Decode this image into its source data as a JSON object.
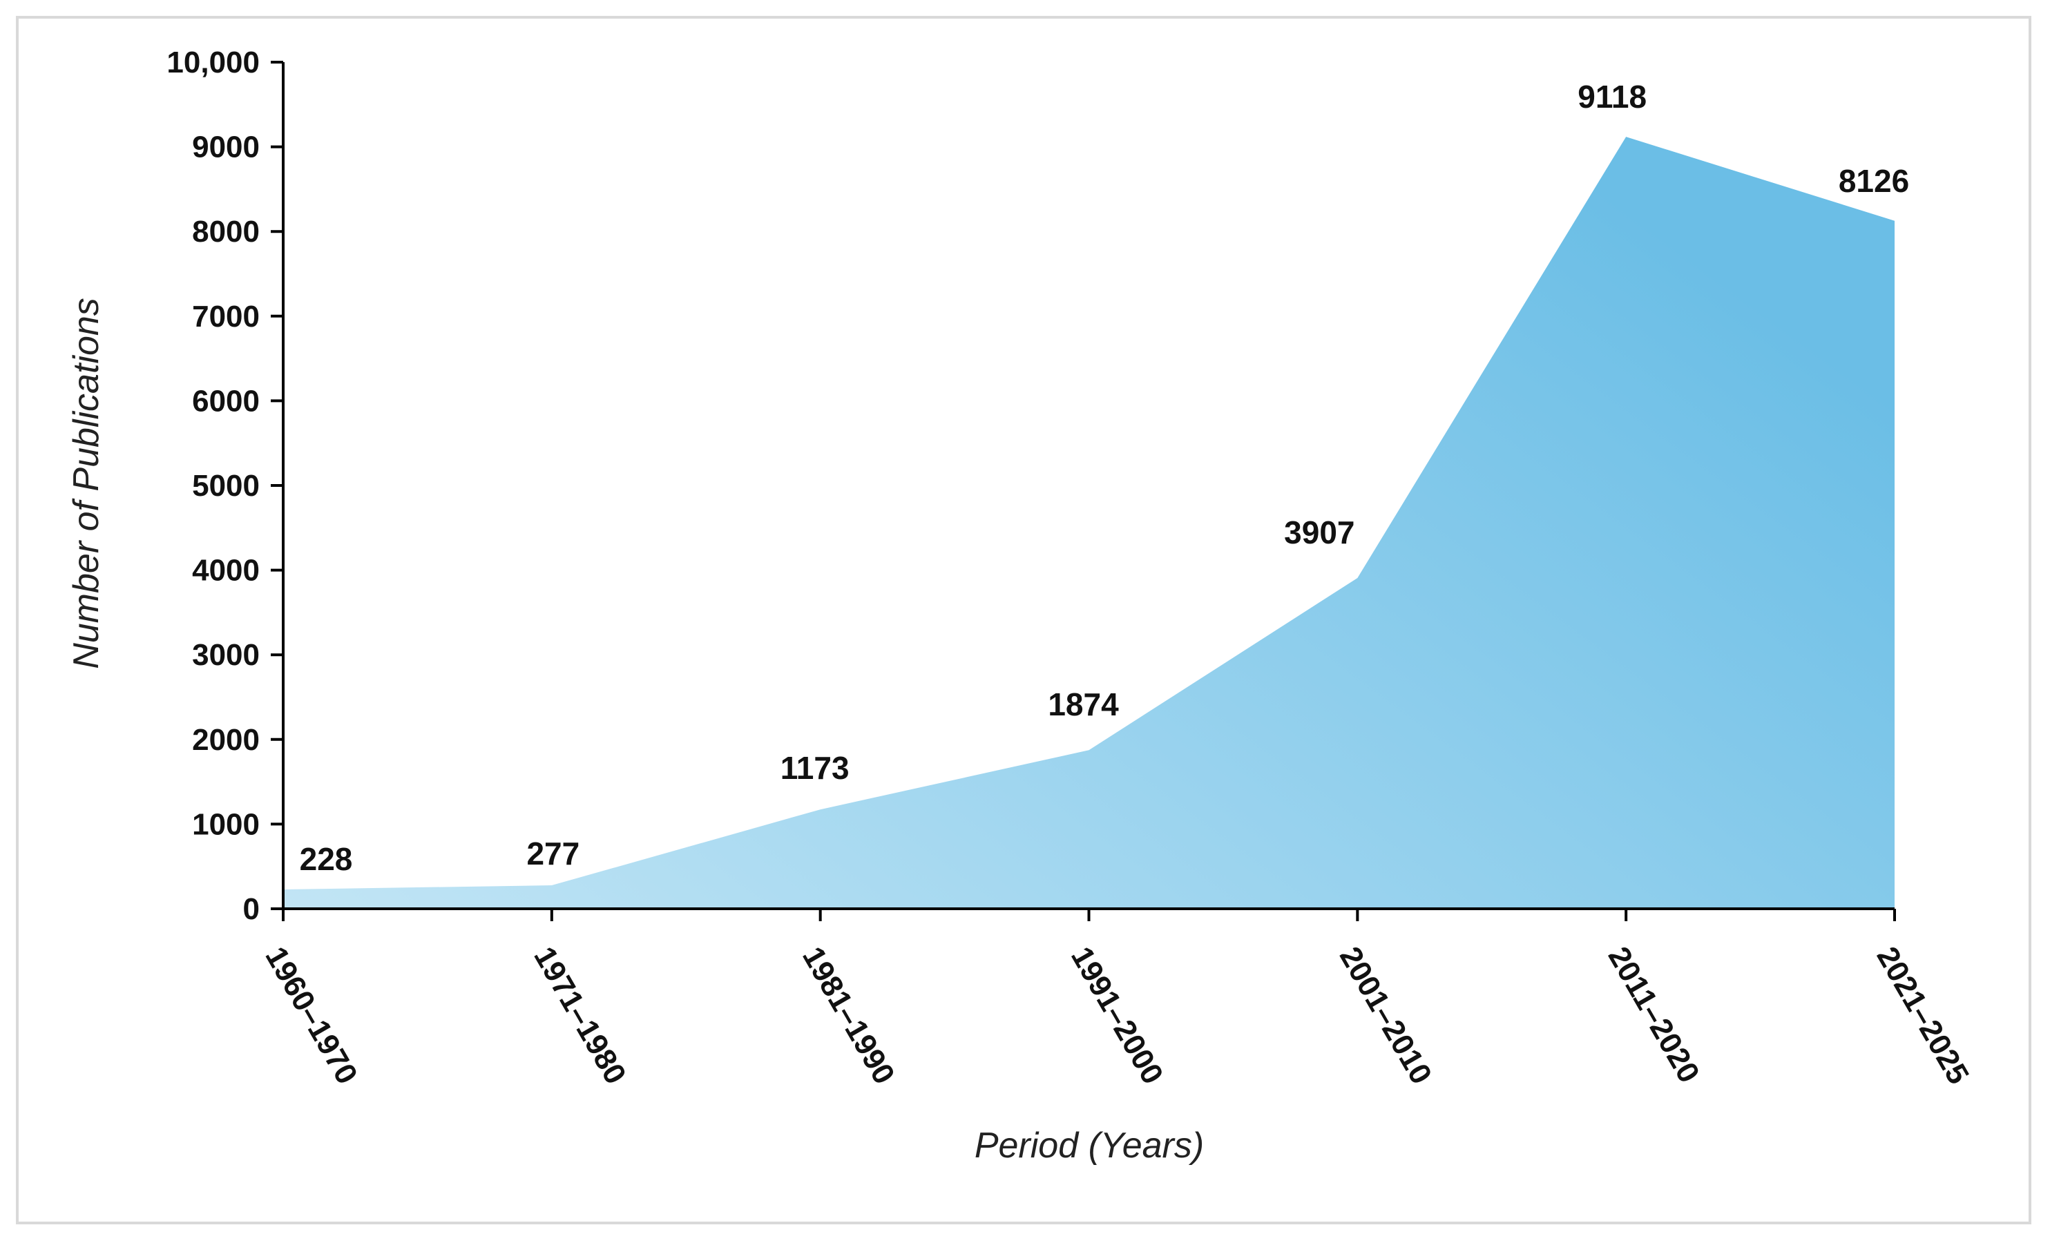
{
  "chart_data": {
    "type": "area",
    "title": "",
    "xlabel": "Period (Years)",
    "ylabel": "Number of Publications",
    "categories": [
      "1960–1970",
      "1971–1980",
      "1981–1990",
      "1991–2000",
      "2001–2010",
      "2011–2020",
      "2021–2025"
    ],
    "values": [
      228,
      277,
      1173,
      1874,
      3907,
      9118,
      8126
    ],
    "data_labels": [
      "228",
      "277",
      "1173",
      "1874",
      "3907",
      "9118",
      "8126"
    ],
    "ylim": [
      0,
      10000
    ],
    "yticks": [
      0,
      1000,
      2000,
      3000,
      4000,
      5000,
      6000,
      7000,
      8000,
      9000,
      10000
    ],
    "ytick_labels": [
      "0",
      "1000",
      "2000",
      "3000",
      "4000",
      "5000",
      "6000",
      "7000",
      "8000",
      "9000",
      "10,000"
    ],
    "grid": false,
    "legend": "none",
    "colors": {
      "area_light": "#bfe3f4",
      "area_dark": "#6cbfe6",
      "axis": "#000000",
      "border": "#d9d9d9"
    }
  }
}
